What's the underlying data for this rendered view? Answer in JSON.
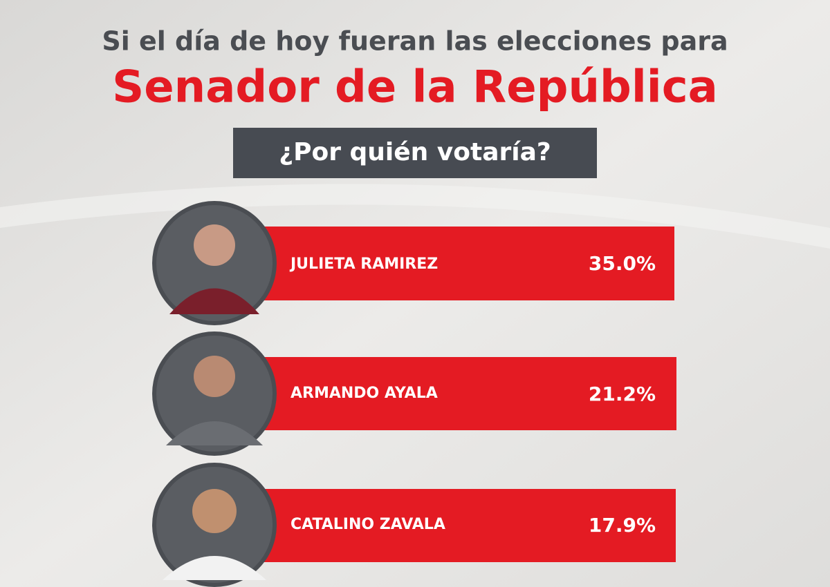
{
  "header": {
    "line1": "Si el día de hoy fueran las elecciones para",
    "line2": "Senador de la República",
    "question": "¿Por quién votaría?"
  },
  "candidates": [
    {
      "name": "JULIETA RAMIREZ",
      "percent": "35.0%"
    },
    {
      "name": "ARMANDO AYALA",
      "percent": "21.2%"
    },
    {
      "name": "CATALINO ZAVALA",
      "percent": "17.9%"
    }
  ]
}
